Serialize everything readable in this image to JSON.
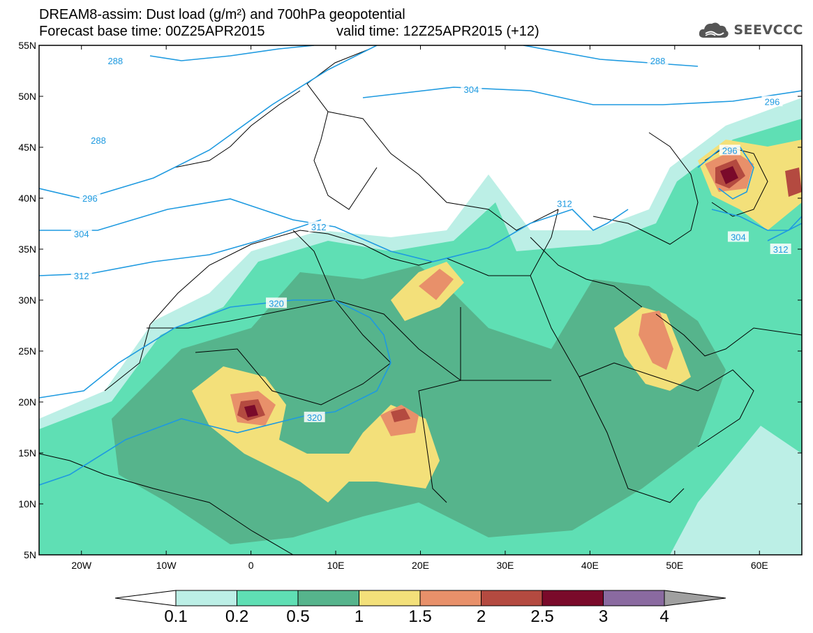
{
  "header": {
    "title_line1": "DREAM8-assim: Dust load (g/m²) and 700hPa geopotential",
    "base_time": "Forecast base time: 00Z25APR2015",
    "valid_time": "valid time: 12Z25APR2015 (+12)",
    "logo_text": "SEEVCCC",
    "logo_icon": "cloud-icon"
  },
  "axes": {
    "lat_labels": [
      "55N",
      "50N",
      "45N",
      "40N",
      "35N",
      "30N",
      "25N",
      "20N",
      "15N",
      "10N",
      "5N"
    ],
    "lon_labels": [
      "20W",
      "10W",
      "0",
      "10E",
      "20E",
      "30E",
      "40E",
      "50E",
      "60E"
    ]
  },
  "contour_labels": [
    {
      "text": "288",
      "lon": -16,
      "lat": 53.5
    },
    {
      "text": "288",
      "lon": 48,
      "lat": 53.5
    },
    {
      "text": "304",
      "lon": 26,
      "lat": 50.7
    },
    {
      "text": "296",
      "lon": 61.5,
      "lat": 49.5
    },
    {
      "text": "288",
      "lon": -18,
      "lat": 45.7
    },
    {
      "text": "296",
      "lon": 56.5,
      "lat": 44.7
    },
    {
      "text": "296",
      "lon": -19,
      "lat": 40
    },
    {
      "text": "312",
      "lon": 37,
      "lat": 39.5
    },
    {
      "text": "312",
      "lon": 8,
      "lat": 37.2
    },
    {
      "text": "304",
      "lon": -20,
      "lat": 36.5
    },
    {
      "text": "304",
      "lon": 57.5,
      "lat": 36.2
    },
    {
      "text": "312",
      "lon": 62.5,
      "lat": 35
    },
    {
      "text": "312",
      "lon": -20,
      "lat": 32.4
    },
    {
      "text": "320",
      "lon": 3,
      "lat": 29.7
    },
    {
      "text": "320",
      "lon": 7.5,
      "lat": 18.5
    }
  ],
  "colorbar": {
    "labels": [
      "0.1",
      "0.2",
      "0.5",
      "1",
      "1.5",
      "2",
      "2.5",
      "3",
      "4"
    ],
    "colors": [
      "#ffffff",
      "#bcefe6",
      "#5fdfb4",
      "#56b48c",
      "#f3e07a",
      "#e8906a",
      "#b44a40",
      "#7a0a2a",
      "#8a6aa0",
      "#a0a0a0"
    ]
  }
}
